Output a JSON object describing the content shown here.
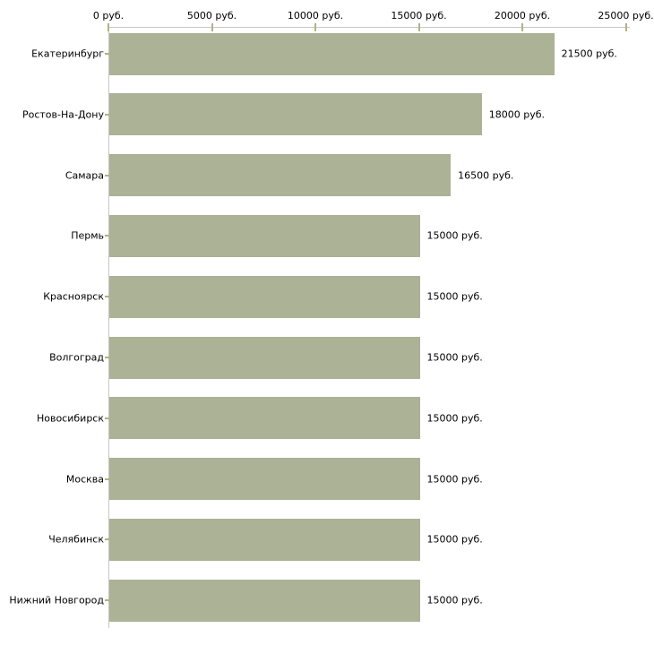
{
  "chart_data": {
    "type": "bar",
    "orientation": "horizontal",
    "title": "",
    "categories": [
      "Екатеринбург",
      "Ростов-На-Дону",
      "Самара",
      "Пермь",
      "Красноярск",
      "Волгоград",
      "Новосибирск",
      "Москва",
      "Челябинск",
      "Нижний Новгород"
    ],
    "values": [
      21500,
      18000,
      16500,
      15000,
      15000,
      15000,
      15000,
      15000,
      15000,
      15000
    ],
    "value_labels": [
      "21500 руб.",
      "18000 руб.",
      "16500 руб.",
      "15000 руб.",
      "15000 руб.",
      "15000 руб.",
      "15000 руб.",
      "15000 руб.",
      "15000 руб.",
      "15000 руб."
    ],
    "x_axis": {
      "position": "top",
      "range": [
        0,
        25000
      ],
      "ticks": [
        0,
        5000,
        10000,
        15000,
        20000,
        25000
      ],
      "tick_labels": [
        "0 руб.",
        "5000 руб.",
        "10000 руб.",
        "15000 руб.",
        "20000 руб.",
        "25000 руб."
      ],
      "unit": "руб."
    },
    "legend": "none",
    "grid": "off",
    "colors": {
      "bar_fill": "#abb296",
      "axis_line": "#c6c6c6",
      "tick_mark": "#b5b081",
      "text": "#000000",
      "background": "#ffffff"
    }
  }
}
